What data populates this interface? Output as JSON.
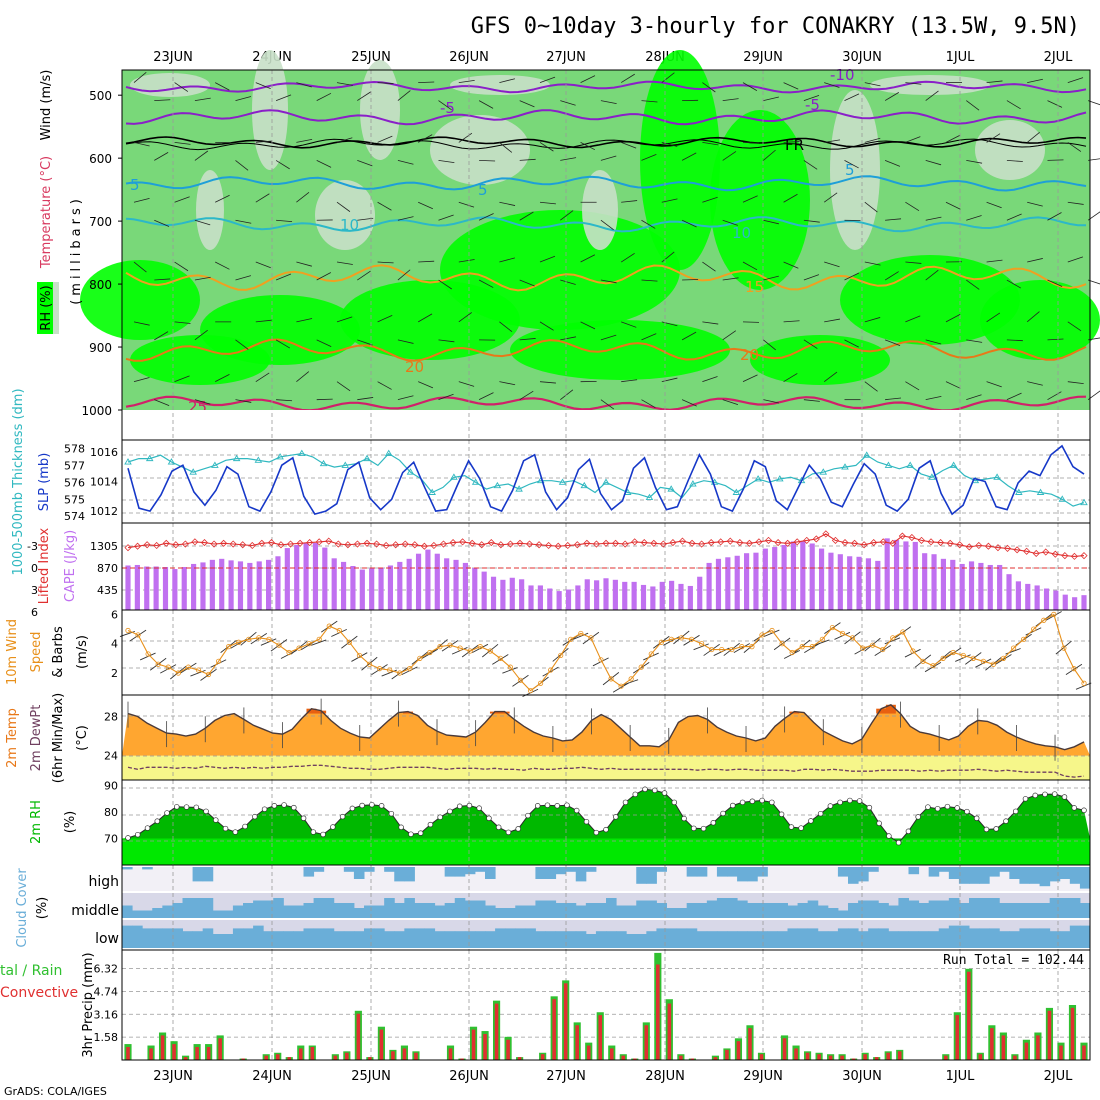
{
  "title": "GFS 0~10day 3-hourly for CONAKRY (13.5W, 9.5N)",
  "footer": "GrADS: COLA/IGES",
  "dates": [
    "23JUN",
    "24JUN",
    "25JUN",
    "26JUN",
    "27JUN",
    "28JUN",
    "29JUN",
    "30JUN",
    "1JUL",
    "2JUL"
  ],
  "colors": {
    "rh_dark": "#00ff00",
    "rh_mid": "#79d879",
    "rh_light": "#c8e0c8",
    "rh_pale": "#e8f0e8",
    "purple": "#8a1fc8",
    "black": "#000000",
    "cyan": "#1e9fd8",
    "cyan2": "#2cb8c8",
    "orange": "#f0a020",
    "orange2": "#e87818",
    "crimson": "#d0206a",
    "slp": "#1638c8",
    "thick": "#30b8c0",
    "cape": "#c070f0",
    "li": "#e03030",
    "wind10": "#e8901a",
    "temp_fill": "#ffa630",
    "temp_hot": "#e86010",
    "dew_fill": "#f6f68a",
    "rh2": "#00b800",
    "rh2_light": "#00e800",
    "cloud": "#6aaed8",
    "cloud_bg": "#d8d8e8",
    "precip_total": "#30c030",
    "precip_conv": "#e03030"
  },
  "panels": {
    "upper": {
      "ylabel_rh": "RH (%)",
      "ylabel_temp": "Temperature (°C)",
      "ylabel_wind": "Wind (m/s)",
      "ylabel_mb": "(millibars)",
      "yticks": [
        500,
        600,
        700,
        800,
        900,
        1000
      ],
      "contour_labels": [
        "-10",
        "-5",
        "FR",
        "5",
        "10",
        "15",
        "20",
        "25"
      ]
    },
    "slp": {
      "ylabel_left": "1000-500mb Thickness (dm)",
      "ylabel_right": "SLP (mb)",
      "yticks_left": [
        574,
        575,
        576,
        577,
        578
      ],
      "yticks_right": [
        1012,
        1014,
        1016
      ]
    },
    "cape": {
      "ylabel_left": "Lifted Index",
      "ylabel_right": "CAPE (J/kg)",
      "yticks_left": [
        "-3",
        "0",
        "3",
        "6"
      ],
      "yticks_right": [
        "1305",
        "870",
        "435"
      ]
    },
    "wind10": {
      "ylabel_a": "10m Wind",
      "ylabel_b": "Speed",
      "ylabel_c": "& Barbs",
      "ylabel_unit": "(m/s)",
      "yticks": [
        2,
        4,
        6
      ]
    },
    "temp2m": {
      "ylabel_a": "2m Temp",
      "ylabel_b": "2m DewPt",
      "ylabel_c": "(6hr Min/Max)",
      "ylabel_unit": "(°C)",
      "yticks": [
        24,
        28
      ]
    },
    "rh2m": {
      "ylabel": "2m RH",
      "ylabel_unit": "(%)",
      "yticks": [
        70,
        80,
        90
      ]
    },
    "cloud": {
      "ylabel": "Cloud Cover",
      "ylabel_unit": "(%)",
      "levels": [
        "high",
        "middle",
        "low"
      ]
    },
    "precip": {
      "ylabel_a": "tal / Rain",
      "ylabel_b": "Convective",
      "ylabel_c": "3hr Precip (mm)",
      "yticks": [
        "1.58",
        "3.16",
        "4.74",
        "6.32"
      ],
      "run_total": "Run Total = 102.44"
    }
  },
  "chart_data": {
    "type": "line",
    "x_label_positions": [
      "23JUN",
      "24JUN",
      "25JUN",
      "26JUN",
      "27JUN",
      "28JUN",
      "29JUN",
      "30JUN",
      "1JUL",
      "2JUL"
    ],
    "slp_mb": [
      1014.9,
      1012.2,
      1012.0,
      1013.1,
      1014.7,
      1015.1,
      1013.3,
      1012.4,
      1013.4,
      1015.0,
      1014.5,
      1012.3,
      1012.0,
      1013.3,
      1015.1,
      1015.6,
      1013.0,
      1011.8,
      1012.0,
      1012.5,
      1014.8,
      1015.3,
      1012.9,
      1012.1,
      1012.8,
      1014.6,
      1015.3,
      1013.6,
      1012.0,
      1012.1,
      1013.8,
      1015.4,
      1014.2,
      1012.3,
      1012.0,
      1013.4,
      1015.4,
      1015.8,
      1013.3,
      1012.1,
      1012.9,
      1014.8,
      1015.5,
      1013.2,
      1012.1,
      1012.7,
      1014.9,
      1015.6,
      1013.6,
      1012.1,
      1012.3,
      1014.1,
      1015.8,
      1014.5,
      1012.3,
      1012.0,
      1013.5,
      1015.4,
      1015.0,
      1012.7,
      1012.1,
      1013.6,
      1015.1,
      1014.2,
      1012.6,
      1012.3,
      1013.8,
      1015.2,
      1014.5,
      1012.4,
      1012.0,
      1012.8,
      1014.9,
      1015.4,
      1013.2,
      1011.8,
      1012.4,
      1014.2,
      1014.0,
      1012.3,
      1012.1,
      1013.9,
      1014.7,
      1014.4,
      1015.8,
      1016.4,
      1015.0,
      1014.5
    ],
    "thickness_dm": [
      577.2,
      577.4,
      577.4,
      577.6,
      577.2,
      576.9,
      576.6,
      576.8,
      577.0,
      577.3,
      577.4,
      577.4,
      577.3,
      577.2,
      577.5,
      577.6,
      577.7,
      577.5,
      577.1,
      576.9,
      577.0,
      577.1,
      577.4,
      577.0,
      577.7,
      577.3,
      576.6,
      576.2,
      575.4,
      575.7,
      576.3,
      576.4,
      576.0,
      575.6,
      575.8,
      575.9,
      575.6,
      575.9,
      576.1,
      576.1,
      576.0,
      576.1,
      575.8,
      575.4,
      576.0,
      575.7,
      575.4,
      575.3,
      575.1,
      575.7,
      575.6,
      575.1,
      575.9,
      576.1,
      576.0,
      575.8,
      575.4,
      575.8,
      576.2,
      576.0,
      576.2,
      576.3,
      576.1,
      576.5,
      576.6,
      576.8,
      576.9,
      577.0,
      577.6,
      577.2,
      577.0,
      576.8,
      577.0,
      576.5,
      576.3,
      576.7,
      577.0,
      576.4,
      576.1,
      576.2,
      576.3,
      575.8,
      575.4,
      575.5,
      575.4,
      575.3,
      575.0,
      574.6,
      574.8
    ],
    "cape_jkg": [
      870,
      880,
      850,
      850,
      840,
      800,
      840,
      900,
      930,
      980,
      1000,
      970,
      950,
      920,
      950,
      980,
      1050,
      1210,
      1270,
      1300,
      1310,
      1220,
      1010,
      940,
      860,
      790,
      810,
      830,
      870,
      940,
      1000,
      1100,
      1180,
      1100,
      1010,
      980,
      920,
      820,
      750,
      650,
      590,
      630,
      600,
      480,
      480,
      420,
      370,
      400,
      480,
      600,
      580,
      620,
      590,
      550,
      550,
      490,
      460,
      550,
      570,
      510,
      470,
      650,
      920,
      1000,
      1030,
      1060,
      1110,
      1120,
      1200,
      1230,
      1270,
      1340,
      1350,
      1300,
      1200,
      1120,
      1090,
      1050,
      1040,
      1010,
      960,
      1400,
      1370,
      1340,
      1330,
      1110,
      1090,
      1000,
      980,
      900,
      950,
      920,
      880,
      880,
      700,
      560,
      510,
      480,
      420,
      380,
      300,
      250,
      290
    ],
    "lifted_index": [
      -2.6,
      -2.8,
      -3.0,
      -2.9,
      -3.2,
      -3.0,
      -3.1,
      -3.4,
      -3.3,
      -3.1,
      -3.2,
      -3.1,
      -3.0,
      -2.9,
      -3.2,
      -3.3,
      -3.0,
      -3.1,
      -3.2,
      -3.3,
      -3.4,
      -3.5,
      -3.1,
      -3.0,
      -3.1,
      -3.2,
      -3.1,
      -2.9,
      -3.0,
      -3.1,
      -3.0,
      -2.8,
      -2.9,
      -3.1,
      -3.3,
      -3.4,
      -3.2,
      -3.0,
      -3.3,
      -3.0,
      -3.1,
      -3.2,
      -3.1,
      -3.0,
      -2.9,
      -2.8,
      -2.9,
      -3.0,
      -3.2,
      -3.1,
      -3.2,
      -3.2,
      -3.1,
      -3.4,
      -3.3,
      -3.2,
      -3.1,
      -3.3,
      -3.5,
      -3.2,
      -3.1,
      -3.3,
      -3.4,
      -3.5,
      -3.3,
      -3.2,
      -3.4,
      -3.6,
      -3.3,
      -3.2,
      -3.4,
      -3.6,
      -3.8,
      -4.5,
      -3.6,
      -3.3,
      -3.2,
      -3.0,
      -3.3,
      -3.4,
      -3.2,
      -4.2,
      -4.0,
      -3.6,
      -3.4,
      -3.3,
      -3.2,
      -3.0,
      -2.7,
      -2.9,
      -2.8,
      -2.6,
      -2.5,
      -2.3,
      -2.1,
      -1.8,
      -2.0,
      -1.7,
      -1.5,
      -1.4,
      -1.5
    ],
    "wind10_ms": [
      4.9,
      4.6,
      3.3,
      2.6,
      2.4,
      2.0,
      2.4,
      2.2,
      1.9,
      2.8,
      3.8,
      4.1,
      4.3,
      4.4,
      4.3,
      3.9,
      3.4,
      3.7,
      4.0,
      4.3,
      5.2,
      4.9,
      4.1,
      3.2,
      2.6,
      2.3,
      2.2,
      2.0,
      2.3,
      3.0,
      3.4,
      3.8,
      3.9,
      3.7,
      3.5,
      3.8,
      3.5,
      3.0,
      2.4,
      1.5,
      0.8,
      1.3,
      2.2,
      3.2,
      4.3,
      4.7,
      4.4,
      2.9,
      1.6,
      1.1,
      1.6,
      2.4,
      3.3,
      4.1,
      4.3,
      4.4,
      4.3,
      4.0,
      3.6,
      3.6,
      3.6,
      3.8,
      3.8,
      4.6,
      4.9,
      4.0,
      3.4,
      3.8,
      3.8,
      4.3,
      5.1,
      4.7,
      4.4,
      3.7,
      3.9,
      3.6,
      4.4,
      4.8,
      3.5,
      2.8,
      2.5,
      3.0,
      3.4,
      3.2,
      3.0,
      2.8,
      2.6,
      3.0,
      3.7,
      4.3,
      5.0,
      5.6,
      6.0,
      3.7,
      2.3,
      1.3
    ],
    "temp2m_c": [
      28.3,
      28.0,
      27.3,
      26.8,
      26.3,
      26.2,
      26.0,
      26.2,
      26.8,
      27.6,
      28.1,
      28.3,
      27.7,
      27.1,
      26.7,
      26.3,
      26.2,
      26.7,
      27.8,
      28.8,
      28.6,
      27.6,
      26.8,
      26.3,
      25.9,
      25.8,
      26.7,
      27.6,
      28.4,
      28.5,
      28.1,
      27.1,
      26.5,
      26.1,
      26.0,
      25.9,
      26.4,
      27.4,
      28.5,
      28.5,
      27.7,
      27.0,
      26.4,
      26.0,
      25.8,
      25.5,
      25.6,
      26.4,
      27.6,
      28.2,
      27.7,
      26.8,
      25.9,
      25.0,
      25.0,
      24.9,
      25.6,
      27.4,
      28.0,
      28.1,
      27.7,
      26.9,
      26.4,
      26.0,
      25.8,
      25.5,
      25.8,
      27.0,
      27.8,
      28.5,
      28.4,
      27.4,
      26.5,
      26.0,
      25.5,
      25.2,
      25.7,
      27.3,
      28.8,
      29.2,
      28.3,
      27.0,
      26.4,
      26.2,
      25.9,
      25.6,
      26.0,
      27.0,
      27.6,
      27.5,
      27.1,
      26.4,
      25.9,
      25.5,
      25.2,
      25.0,
      24.9,
      24.6,
      24.9,
      25.4
    ],
    "dewpt2m_c": [
      22.8,
      22.6,
      22.8,
      22.8,
      22.8,
      22.7,
      22.8,
      22.7,
      22.9,
      22.8,
      22.7,
      22.8,
      22.7,
      22.8,
      22.7,
      22.8,
      22.8,
      22.9,
      22.9,
      23.0,
      23.0,
      22.9,
      22.8,
      22.7,
      22.7,
      22.6,
      22.6,
      22.7,
      22.8,
      22.8,
      22.8,
      22.8,
      22.7,
      22.6,
      22.7,
      22.7,
      22.7,
      22.6,
      22.7,
      22.6,
      22.6,
      22.5,
      22.7,
      22.6,
      22.6,
      22.7,
      22.7,
      22.8,
      22.7,
      22.6,
      22.7,
      22.6,
      22.6,
      22.6,
      22.6,
      22.6,
      22.6,
      22.6,
      22.6,
      22.5,
      22.6,
      22.6,
      22.5,
      22.6,
      22.6,
      22.5,
      22.5,
      22.5,
      22.5,
      22.4,
      22.6,
      22.6,
      22.5,
      22.6,
      22.5,
      22.4,
      22.4,
      22.4,
      22.5,
      22.5,
      22.5,
      22.5,
      22.4,
      22.5,
      22.4,
      22.5,
      22.5,
      22.5,
      22.6,
      22.5,
      22.4,
      22.5,
      22.4,
      22.3,
      22.3,
      22.3,
      22.3,
      21.9,
      21.8,
      21.9
    ],
    "rh2m_pct": [
      70.2,
      71.4,
      73.9,
      76.5,
      79.6,
      81.9,
      81.8,
      81.7,
      80.2,
      76.9,
      73.7,
      72.4,
      74.5,
      78.2,
      81.0,
      82.3,
      82.6,
      81.6,
      77.6,
      72.4,
      71.5,
      74.3,
      78.2,
      81.3,
      82.4,
      82.7,
      82.3,
      79.3,
      74.2,
      71.6,
      72.0,
      75.2,
      78.0,
      80.2,
      82.1,
      82.4,
      81.4,
      77.6,
      74.2,
      72.3,
      73.6,
      78.6,
      82.3,
      82.5,
      82.3,
      82.5,
      80.5,
      76.3,
      72.2,
      73.3,
      78.1,
      83.6,
      86.6,
      88.5,
      88.1,
      87.1,
      83.6,
      77.5,
      73.8,
      73.7,
      75.9,
      79.4,
      82.4,
      83.6,
      84.0,
      84.3,
      83.6,
      79.1,
      74.3,
      73.9,
      76.6,
      79.3,
      82.2,
      83.6,
      84.3,
      84.1,
      81.6,
      75.7,
      70.9,
      68.4,
      72.7,
      78.1,
      81.8,
      81.2,
      82.0,
      81.5,
      80.1,
      77.6,
      73.4,
      73.6,
      76.5,
      80.2,
      84.9,
      86.2,
      86.6,
      86.7,
      85.6,
      81.5,
      80.6
    ],
    "cloud_high_pct": [
      10,
      0,
      10,
      0,
      0,
      0,
      0,
      60,
      60,
      0,
      0,
      0,
      0,
      0,
      0,
      0,
      0,
      0,
      40,
      20,
      0,
      0,
      20,
      50,
      20,
      0,
      20,
      60,
      60,
      0,
      0,
      0,
      40,
      40,
      30,
      20,
      50,
      0,
      0,
      0,
      0,
      50,
      50,
      30,
      20,
      60,
      20,
      0,
      0,
      0,
      0,
      70,
      70,
      20,
      0,
      0,
      40,
      40,
      0,
      40,
      40,
      60,
      60,
      40,
      0,
      0,
      0,
      0,
      0,
      0,
      0,
      40,
      70,
      60,
      20,
      0,
      0,
      0,
      30,
      0,
      40,
      20,
      50,
      70,
      70,
      70,
      40,
      20,
      50,
      70,
      70,
      80,
      60,
      50,
      70,
      90
    ],
    "cloud_mid_pct": [
      50,
      30,
      30,
      40,
      50,
      60,
      80,
      80,
      80,
      30,
      30,
      50,
      60,
      70,
      70,
      80,
      50,
      50,
      60,
      80,
      80,
      60,
      60,
      40,
      50,
      50,
      80,
      60,
      80,
      60,
      60,
      50,
      60,
      80,
      70,
      70,
      50,
      40,
      40,
      50,
      50,
      70,
      70,
      60,
      60,
      50,
      60,
      60,
      80,
      50,
      50,
      70,
      70,
      60,
      40,
      40,
      60,
      60,
      70,
      80,
      80,
      70,
      60,
      60,
      60,
      60,
      50,
      60,
      70,
      50,
      40,
      30,
      60,
      70,
      70,
      60,
      50,
      80,
      70,
      60,
      70,
      70,
      80,
      60,
      80,
      80,
      80,
      60,
      60,
      60,
      60,
      60,
      80,
      80,
      80,
      60
    ],
    "cloud_low_pct": [
      80,
      80,
      70,
      70,
      70,
      70,
      60,
      60,
      70,
      50,
      50,
      70,
      70,
      80,
      60,
      60,
      60,
      60,
      70,
      70,
      70,
      60,
      60,
      60,
      70,
      70,
      60,
      60,
      70,
      70,
      70,
      60,
      60,
      60,
      60,
      60,
      60,
      70,
      70,
      70,
      70,
      60,
      60,
      60,
      60,
      60,
      50,
      60,
      60,
      60,
      50,
      50,
      60,
      70,
      70,
      70,
      70,
      60,
      60,
      60,
      60,
      60,
      60,
      60,
      60,
      60,
      70,
      70,
      70,
      60,
      60,
      70,
      70,
      60,
      70,
      70,
      60,
      60,
      60,
      60,
      60,
      70,
      80,
      80,
      70,
      70,
      70,
      60,
      60,
      70,
      70,
      70,
      60,
      60,
      80,
      80
    ],
    "precip_total_mm": [
      1.1,
      0.0,
      1.0,
      1.9,
      1.3,
      0.3,
      1.1,
      1.1,
      1.7,
      0.0,
      0.1,
      0.0,
      0.4,
      0.5,
      0.2,
      1.0,
      1.0,
      0.0,
      0.4,
      0.6,
      3.4,
      0.2,
      2.3,
      0.7,
      1.0,
      0.6,
      0.0,
      0.0,
      1.0,
      0.1,
      2.3,
      2.0,
      4.1,
      1.6,
      0.2,
      0.0,
      0.5,
      4.4,
      5.5,
      2.6,
      1.2,
      3.3,
      1.0,
      0.4,
      0.1,
      2.6,
      7.4,
      4.2,
      0.4,
      0.1,
      0.0,
      0.3,
      0.8,
      1.5,
      2.4,
      0.5,
      0.0,
      1.7,
      1.0,
      0.6,
      0.5,
      0.4,
      0.4,
      0.1,
      0.5,
      0.2,
      0.6,
      0.7,
      0.0,
      0.0,
      0.0,
      0.4,
      3.3,
      6.3,
      0.5,
      2.4,
      1.9,
      0.4,
      1.4,
      1.9,
      3.6,
      1.2,
      3.8,
      1.2
    ],
    "precip_conv_mm": [
      0.9,
      0.0,
      0.8,
      1.7,
      1.1,
      0.2,
      0.9,
      0.9,
      1.5,
      0.0,
      0.1,
      0.0,
      0.3,
      0.4,
      0.2,
      0.8,
      0.9,
      0.0,
      0.3,
      0.5,
      3.2,
      0.2,
      2.1,
      0.6,
      0.8,
      0.5,
      0.0,
      0.0,
      0.8,
      0.1,
      2.1,
      1.8,
      3.9,
      1.4,
      0.2,
      0.0,
      0.4,
      4.2,
      5.3,
      2.4,
      1.0,
      3.1,
      0.8,
      0.3,
      0.1,
      2.4,
      6.6,
      3.9,
      0.3,
      0.1,
      0.0,
      0.2,
      0.7,
      1.3,
      2.2,
      0.4,
      0.0,
      1.5,
      0.8,
      0.5,
      0.4,
      0.3,
      0.3,
      0.1,
      0.4,
      0.2,
      0.5,
      0.6,
      0.0,
      0.0,
      0.0,
      0.3,
      3.1,
      6.1,
      0.4,
      2.2,
      1.7,
      0.3,
      1.2,
      1.7,
      3.4,
      1.0,
      3.6,
      1.0
    ]
  }
}
